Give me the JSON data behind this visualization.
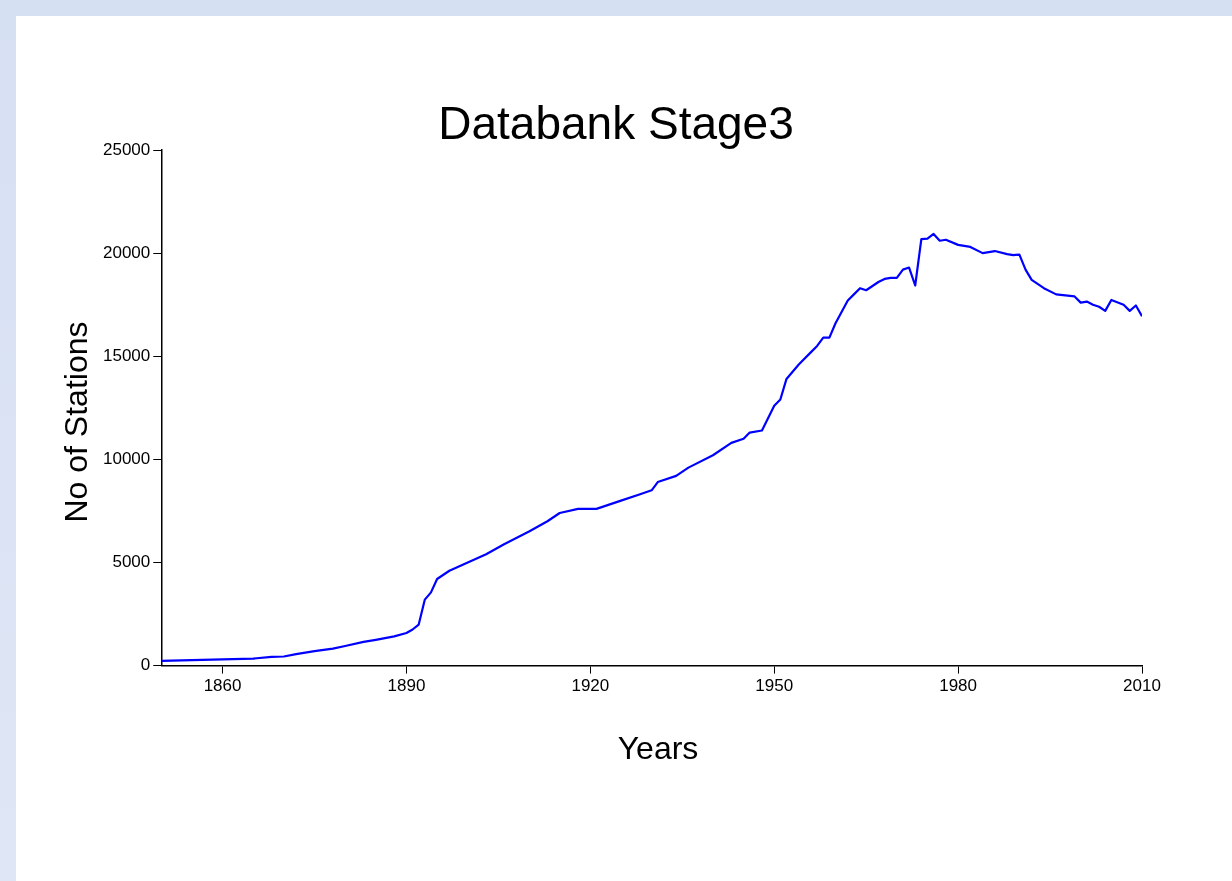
{
  "chart_data": {
    "type": "line",
    "title": "Databank Stage3",
    "xlabel": "Years",
    "ylabel": "No of Stations",
    "x": [
      1850,
      1855,
      1860,
      1865,
      1868,
      1870,
      1872,
      1875,
      1878,
      1880,
      1883,
      1885,
      1888,
      1890,
      1891,
      1892,
      1893,
      1894,
      1895,
      1897,
      1900,
      1903,
      1906,
      1910,
      1913,
      1915,
      1918,
      1921,
      1925,
      1928,
      1930,
      1931,
      1934,
      1936,
      1940,
      1943,
      1945,
      1946,
      1948,
      1950,
      1951,
      1952,
      1954,
      1956,
      1957,
      1958,
      1959,
      1960,
      1962,
      1963,
      1964,
      1965,
      1967,
      1968,
      1969,
      1970,
      1971,
      1972,
      1973,
      1974,
      1975,
      1976,
      1977,
      1978,
      1980,
      1982,
      1984,
      1986,
      1988,
      1989,
      1990,
      1991,
      1992,
      1994,
      1996,
      1999,
      2000,
      2001,
      2002,
      2003,
      2004,
      2005,
      2007,
      2008,
      2009,
      2010
    ],
    "series": [
      {
        "color": "#0000ff",
        "values": [
          230,
          270,
          300,
          340,
          420,
          440,
          560,
          700,
          820,
          950,
          1150,
          1250,
          1420,
          1580,
          1750,
          1990,
          3200,
          3550,
          4200,
          4600,
          5000,
          5400,
          5900,
          6500,
          7000,
          7400,
          7600,
          7600,
          8000,
          8300,
          8500,
          8900,
          9200,
          9600,
          10200,
          10800,
          11000,
          11300,
          11400,
          12600,
          12900,
          13900,
          14600,
          15200,
          15500,
          15900,
          15900,
          16600,
          17700,
          18000,
          18300,
          18200,
          18600,
          18750,
          18800,
          18800,
          19200,
          19300,
          18430,
          20680,
          20700,
          20930,
          20600,
          20650,
          20400,
          20300,
          20000,
          20100,
          19950,
          19900,
          19930,
          19200,
          18700,
          18300,
          18000,
          17900,
          17600,
          17650,
          17500,
          17400,
          17200,
          17730,
          17500,
          17200,
          17460,
          16940
        ]
      }
    ],
    "xlim": [
      1850,
      2010
    ],
    "xticks": [
      1860,
      1890,
      1920,
      1950,
      1980,
      2010
    ],
    "ylim": [
      0,
      25000
    ],
    "yticks": [
      0,
      5000,
      10000,
      15000,
      20000,
      25000
    ],
    "grid": false,
    "legend": false,
    "marker": "none",
    "line_style": "solid"
  }
}
